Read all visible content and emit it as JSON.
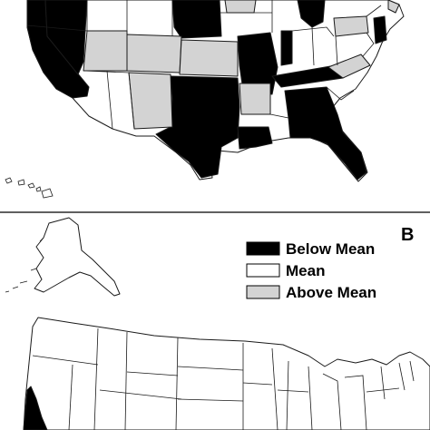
{
  "colors": {
    "below": "#000000",
    "mean": "#ffffff",
    "above": "#d3d3d3",
    "stroke": "#1a1a1a"
  },
  "panel_b": {
    "label": "B",
    "legend": [
      {
        "key": "below",
        "label": "Below Mean"
      },
      {
        "key": "mean",
        "label": "Mean"
      },
      {
        "key": "above",
        "label": "Above Mean"
      }
    ]
  }
}
